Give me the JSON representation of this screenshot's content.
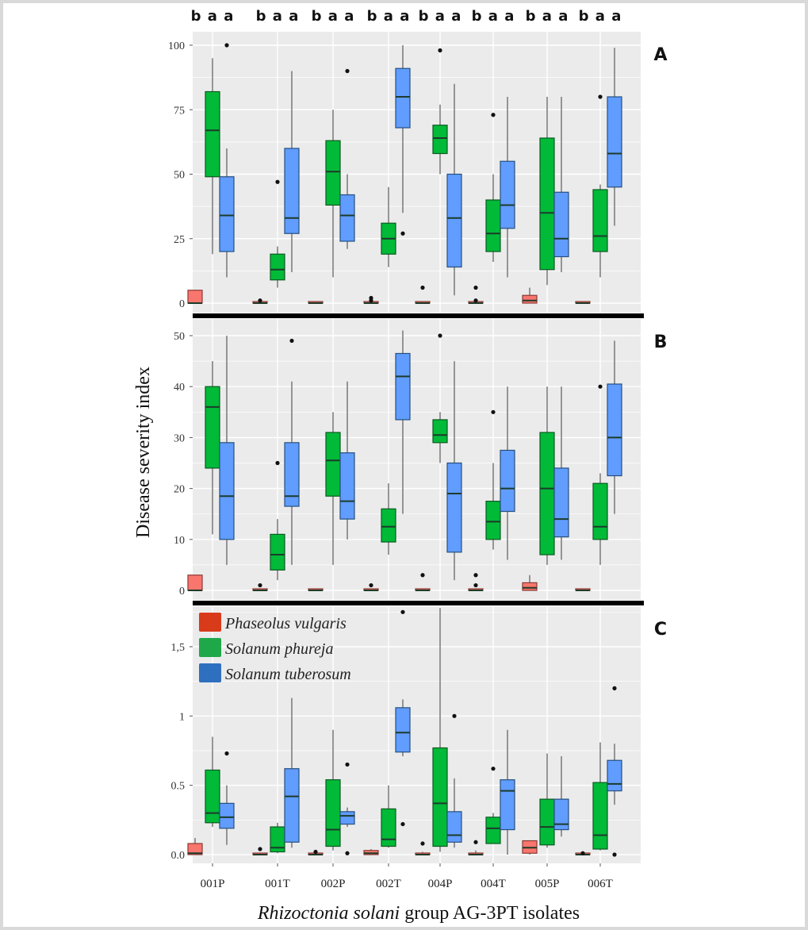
{
  "chart_data": {
    "type": "boxplot",
    "title": "",
    "ylabel": "Disease severity index",
    "xlabel_italic": "Rhizoctonia solani",
    "xlabel_rest": " group AG-3PT isolates",
    "categories": [
      "001P",
      "001T",
      "002P",
      "002T",
      "004P",
      "004T",
      "005P",
      "006T"
    ],
    "significance_letters": [
      "b a a",
      "b a a",
      "b a a",
      "b a a",
      "b a a",
      "b a a",
      "b a a",
      "b a a"
    ],
    "legend": {
      "placement": "top-left of panel C",
      "entries": [
        {
          "label": "Phaseolus vulgaris",
          "color": "#d83b1a"
        },
        {
          "label": "Solanum phureja",
          "color": "#1fa84a"
        },
        {
          "label": "Solanum tuberosum",
          "color": "#2f6fc0"
        }
      ]
    },
    "series_colors": {
      "Phaseolus vulgaris": "#f8766d",
      "Solanum phureja": "#00ba38",
      "Solanum tuberosum": "#619cff"
    },
    "panels": [
      {
        "letter": "A",
        "ylim": [
          -2,
          103
        ],
        "yticks": [
          0,
          25,
          50,
          75,
          100
        ],
        "ytick_labels": [
          "0",
          "25",
          "50",
          "75",
          "100"
        ],
        "groups": [
          {
            "category": "001P",
            "Phaseolus vulgaris": {
              "min": 0,
              "q1": 0,
              "median": 0,
              "q3": 5,
              "max": 5,
              "outliers": []
            },
            "Solanum phureja": {
              "min": 19,
              "q1": 49,
              "median": 67,
              "q3": 82,
              "max": 95,
              "outliers": []
            },
            "Solanum tuberosum": {
              "min": 10,
              "q1": 20,
              "median": 34,
              "q3": 49,
              "max": 60,
              "outliers": [
                100
              ]
            }
          },
          {
            "category": "001T",
            "Phaseolus vulgaris": {
              "min": 0,
              "q1": 0,
              "median": 0,
              "q3": 0,
              "max": 0,
              "outliers": [
                1
              ]
            },
            "Solanum phureja": {
              "min": 6,
              "q1": 9,
              "median": 13,
              "q3": 19,
              "max": 22,
              "outliers": [
                47
              ]
            },
            "Solanum tuberosum": {
              "min": 12,
              "q1": 27,
              "median": 33,
              "q3": 60,
              "max": 90,
              "outliers": []
            }
          },
          {
            "category": "002P",
            "Phaseolus vulgaris": {
              "min": 0,
              "q1": 0,
              "median": 0,
              "q3": 0,
              "max": 0,
              "outliers": []
            },
            "Solanum phureja": {
              "min": 10,
              "q1": 38,
              "median": 51,
              "q3": 63,
              "max": 75,
              "outliers": []
            },
            "Solanum tuberosum": {
              "min": 21,
              "q1": 24,
              "median": 34,
              "q3": 42,
              "max": 50,
              "outliers": [
                90
              ]
            }
          },
          {
            "category": "002T",
            "Phaseolus vulgaris": {
              "min": 0,
              "q1": 0,
              "median": 0,
              "q3": 0,
              "max": 0,
              "outliers": [
                1,
                2
              ]
            },
            "Solanum phureja": {
              "min": 14,
              "q1": 19,
              "median": 25,
              "q3": 31,
              "max": 45,
              "outliers": []
            },
            "Solanum tuberosum": {
              "min": 35,
              "q1": 68,
              "median": 80,
              "q3": 91,
              "max": 100,
              "outliers": [
                27
              ]
            }
          },
          {
            "category": "004P",
            "Phaseolus vulgaris": {
              "min": 0,
              "q1": 0,
              "median": 0,
              "q3": 0,
              "max": 0,
              "outliers": [
                6
              ]
            },
            "Solanum phureja": {
              "min": 50,
              "q1": 58,
              "median": 64,
              "q3": 69,
              "max": 77,
              "outliers": [
                98
              ]
            },
            "Solanum tuberosum": {
              "min": 3,
              "q1": 14,
              "median": 33,
              "q3": 50,
              "max": 85,
              "outliers": []
            }
          },
          {
            "category": "004T",
            "Phaseolus vulgaris": {
              "min": 0,
              "q1": 0,
              "median": 0,
              "q3": 0,
              "max": 0,
              "outliers": [
                1,
                6
              ]
            },
            "Solanum phureja": {
              "min": 16,
              "q1": 20,
              "median": 27,
              "q3": 40,
              "max": 50,
              "outliers": [
                73
              ]
            },
            "Solanum tuberosum": {
              "min": 10,
              "q1": 29,
              "median": 38,
              "q3": 55,
              "max": 80,
              "outliers": []
            }
          },
          {
            "category": "005P",
            "Phaseolus vulgaris": {
              "min": 0,
              "q1": 0,
              "median": 1,
              "q3": 3,
              "max": 6,
              "outliers": []
            },
            "Solanum phureja": {
              "min": 7,
              "q1": 13,
              "median": 35,
              "q3": 64,
              "max": 80,
              "outliers": []
            },
            "Solanum tuberosum": {
              "min": 12,
              "q1": 18,
              "median": 25,
              "q3": 43,
              "max": 80,
              "outliers": []
            }
          },
          {
            "category": "006T",
            "Phaseolus vulgaris": {
              "min": 0,
              "q1": 0,
              "median": 0,
              "q3": 0,
              "max": 0,
              "outliers": []
            },
            "Solanum phureja": {
              "min": 10,
              "q1": 20,
              "median": 26,
              "q3": 44,
              "max": 46,
              "outliers": [
                80
              ]
            },
            "Solanum tuberosum": {
              "min": 30,
              "q1": 45,
              "median": 58,
              "q3": 80,
              "max": 99,
              "outliers": []
            }
          }
        ]
      },
      {
        "letter": "B",
        "ylim": [
          -1.5,
          52
        ],
        "yticks": [
          0,
          10,
          20,
          30,
          40,
          50
        ],
        "ytick_labels": [
          "0",
          "10",
          "20",
          "30",
          "40",
          "50"
        ],
        "groups": [
          {
            "category": "001P",
            "Phaseolus vulgaris": {
              "min": 0,
              "q1": 0,
              "median": 0,
              "q3": 3,
              "max": 3,
              "outliers": []
            },
            "Solanum phureja": {
              "min": 11,
              "q1": 24,
              "median": 36,
              "q3": 40,
              "max": 45,
              "outliers": []
            },
            "Solanum tuberosum": {
              "min": 5,
              "q1": 10,
              "median": 18.5,
              "q3": 29,
              "max": 50,
              "outliers": []
            }
          },
          {
            "category": "001T",
            "Phaseolus vulgaris": {
              "min": 0,
              "q1": 0,
              "median": 0,
              "q3": 0,
              "max": 0,
              "outliers": [
                1
              ]
            },
            "Solanum phureja": {
              "min": 2,
              "q1": 4,
              "median": 7,
              "q3": 11,
              "max": 14,
              "outliers": [
                25
              ]
            },
            "Solanum tuberosum": {
              "min": 5,
              "q1": 16.5,
              "median": 18.5,
              "q3": 29,
              "max": 41,
              "outliers": [
                49
              ]
            }
          },
          {
            "category": "002P",
            "Phaseolus vulgaris": {
              "min": 0,
              "q1": 0,
              "median": 0,
              "q3": 0,
              "max": 0,
              "outliers": []
            },
            "Solanum phureja": {
              "min": 5,
              "q1": 18.5,
              "median": 25.5,
              "q3": 31,
              "max": 35,
              "outliers": []
            },
            "Solanum tuberosum": {
              "min": 10,
              "q1": 14,
              "median": 17.5,
              "q3": 27,
              "max": 41,
              "outliers": []
            }
          },
          {
            "category": "002T",
            "Phaseolus vulgaris": {
              "min": 0,
              "q1": 0,
              "median": 0,
              "q3": 0,
              "max": 0,
              "outliers": [
                1
              ]
            },
            "Solanum phureja": {
              "min": 7,
              "q1": 9.5,
              "median": 12.5,
              "q3": 16,
              "max": 21,
              "outliers": []
            },
            "Solanum tuberosum": {
              "min": 15,
              "q1": 33.5,
              "median": 42,
              "q3": 46.5,
              "max": 51,
              "outliers": []
            }
          },
          {
            "category": "004P",
            "Phaseolus vulgaris": {
              "min": 0,
              "q1": 0,
              "median": 0,
              "q3": 0,
              "max": 0,
              "outliers": [
                3
              ]
            },
            "Solanum phureja": {
              "min": 25,
              "q1": 29,
              "median": 30.5,
              "q3": 33.5,
              "max": 35,
              "outliers": [
                50
              ]
            },
            "Solanum tuberosum": {
              "min": 2,
              "q1": 7.5,
              "median": 19,
              "q3": 25,
              "max": 45,
              "outliers": []
            }
          },
          {
            "category": "004T",
            "Phaseolus vulgaris": {
              "min": 0,
              "q1": 0,
              "median": 0,
              "q3": 0,
              "max": 0,
              "outliers": [
                1,
                3
              ]
            },
            "Solanum phureja": {
              "min": 8,
              "q1": 10,
              "median": 13.5,
              "q3": 17.5,
              "max": 25,
              "outliers": [
                35
              ]
            },
            "Solanum tuberosum": {
              "min": 6,
              "q1": 15.5,
              "median": 20,
              "q3": 27.5,
              "max": 40,
              "outliers": []
            }
          },
          {
            "category": "005P",
            "Phaseolus vulgaris": {
              "min": 0,
              "q1": 0,
              "median": 0.5,
              "q3": 1.5,
              "max": 3,
              "outliers": []
            },
            "Solanum phureja": {
              "min": 5,
              "q1": 7,
              "median": 20,
              "q3": 31,
              "max": 40,
              "outliers": []
            },
            "Solanum tuberosum": {
              "min": 6,
              "q1": 10.5,
              "median": 14,
              "q3": 24,
              "max": 40,
              "outliers": []
            }
          },
          {
            "category": "006T",
            "Phaseolus vulgaris": {
              "min": 0,
              "q1": 0,
              "median": 0,
              "q3": 0,
              "max": 0,
              "outliers": []
            },
            "Solanum phureja": {
              "min": 5,
              "q1": 10,
              "median": 12.5,
              "q3": 21,
              "max": 23,
              "outliers": [
                40
              ]
            },
            "Solanum tuberosum": {
              "min": 15,
              "q1": 22.5,
              "median": 30,
              "q3": 40.5,
              "max": 49,
              "outliers": []
            }
          }
        ]
      },
      {
        "letter": "C",
        "ylim": [
          -0.05,
          1.8
        ],
        "yticks": [
          0,
          0.5,
          1,
          1.5
        ],
        "ytick_labels": [
          "0.0",
          "0.5",
          "1",
          "1,5"
        ],
        "groups": [
          {
            "category": "001P",
            "Phaseolus vulgaris": {
              "min": 0,
              "q1": 0,
              "median": 0.01,
              "q3": 0.08,
              "max": 0.12,
              "outliers": []
            },
            "Solanum phureja": {
              "min": 0.2,
              "q1": 0.23,
              "median": 0.3,
              "q3": 0.61,
              "max": 0.85,
              "outliers": []
            },
            "Solanum tuberosum": {
              "min": 0.07,
              "q1": 0.19,
              "median": 0.27,
              "q3": 0.37,
              "max": 0.5,
              "outliers": [
                0.73
              ]
            }
          },
          {
            "category": "001T",
            "Phaseolus vulgaris": {
              "min": 0,
              "q1": 0,
              "median": 0,
              "q3": 0.01,
              "max": 0.01,
              "outliers": [
                0.04
              ]
            },
            "Solanum phureja": {
              "min": 0.01,
              "q1": 0.02,
              "median": 0.05,
              "q3": 0.2,
              "max": 0.23,
              "outliers": []
            },
            "Solanum tuberosum": {
              "min": 0.05,
              "q1": 0.09,
              "median": 0.42,
              "q3": 0.62,
              "max": 1.13,
              "outliers": []
            }
          },
          {
            "category": "002P",
            "Phaseolus vulgaris": {
              "min": 0,
              "q1": 0,
              "median": 0,
              "q3": 0.01,
              "max": 0.01,
              "outliers": [
                0.02
              ]
            },
            "Solanum phureja": {
              "min": 0.03,
              "q1": 0.06,
              "median": 0.18,
              "q3": 0.54,
              "max": 0.9,
              "outliers": []
            },
            "Solanum tuberosum": {
              "min": 0.2,
              "q1": 0.22,
              "median": 0.28,
              "q3": 0.31,
              "max": 0.34,
              "outliers": [
                0.65,
                0.01
              ]
            }
          },
          {
            "category": "002T",
            "Phaseolus vulgaris": {
              "min": 0,
              "q1": 0,
              "median": 0.01,
              "q3": 0.03,
              "max": 0.04,
              "outliers": []
            },
            "Solanum phureja": {
              "min": 0.05,
              "q1": 0.06,
              "median": 0.11,
              "q3": 0.33,
              "max": 0.5,
              "outliers": []
            },
            "Solanum tuberosum": {
              "min": 0.71,
              "q1": 0.74,
              "median": 0.88,
              "q3": 1.06,
              "max": 1.12,
              "outliers": [
                1.75,
                0.22
              ]
            }
          },
          {
            "category": "004P",
            "Phaseolus vulgaris": {
              "min": 0,
              "q1": 0,
              "median": 0,
              "q3": 0.01,
              "max": 0.02,
              "outliers": [
                0.08
              ]
            },
            "Solanum phureja": {
              "min": 0.02,
              "q1": 0.06,
              "median": 0.37,
              "q3": 0.77,
              "max": 1.78,
              "outliers": []
            },
            "Solanum tuberosum": {
              "min": 0.05,
              "q1": 0.09,
              "median": 0.14,
              "q3": 0.31,
              "max": 0.55,
              "outliers": [
                1.0
              ]
            }
          },
          {
            "category": "004T",
            "Phaseolus vulgaris": {
              "min": 0,
              "q1": 0,
              "median": 0,
              "q3": 0.01,
              "max": 0.03,
              "outliers": [
                0.09
              ]
            },
            "Solanum phureja": {
              "min": 0.15,
              "q1": 0.08,
              "median": 0.19,
              "q3": 0.27,
              "max": 0.3,
              "outliers": [
                0.62
              ]
            },
            "Solanum tuberosum": {
              "min": 0.0,
              "q1": 0.18,
              "median": 0.46,
              "q3": 0.54,
              "max": 0.9,
              "outliers": []
            }
          },
          {
            "category": "005P",
            "Phaseolus vulgaris": {
              "min": 0,
              "q1": 0.01,
              "median": 0.05,
              "q3": 0.1,
              "max": 0.1,
              "outliers": []
            },
            "Solanum phureja": {
              "min": 0.05,
              "q1": 0.07,
              "median": 0.2,
              "q3": 0.4,
              "max": 0.73,
              "outliers": []
            },
            "Solanum tuberosum": {
              "min": 0.13,
              "q1": 0.18,
              "median": 0.22,
              "q3": 0.4,
              "max": 0.71,
              "outliers": []
            }
          },
          {
            "category": "006T",
            "Phaseolus vulgaris": {
              "min": 0,
              "q1": 0,
              "median": 0,
              "q3": 0.01,
              "max": 0.01,
              "outliers": [
                0.01
              ]
            },
            "Solanum phureja": {
              "min": 0.03,
              "q1": 0.04,
              "median": 0.14,
              "q3": 0.52,
              "max": 0.81,
              "outliers": []
            },
            "Solanum tuberosum": {
              "min": 0.36,
              "q1": 0.46,
              "median": 0.51,
              "q3": 0.68,
              "max": 0.8,
              "outliers": [
                1.2,
                0.0
              ]
            }
          }
        ]
      }
    ]
  }
}
